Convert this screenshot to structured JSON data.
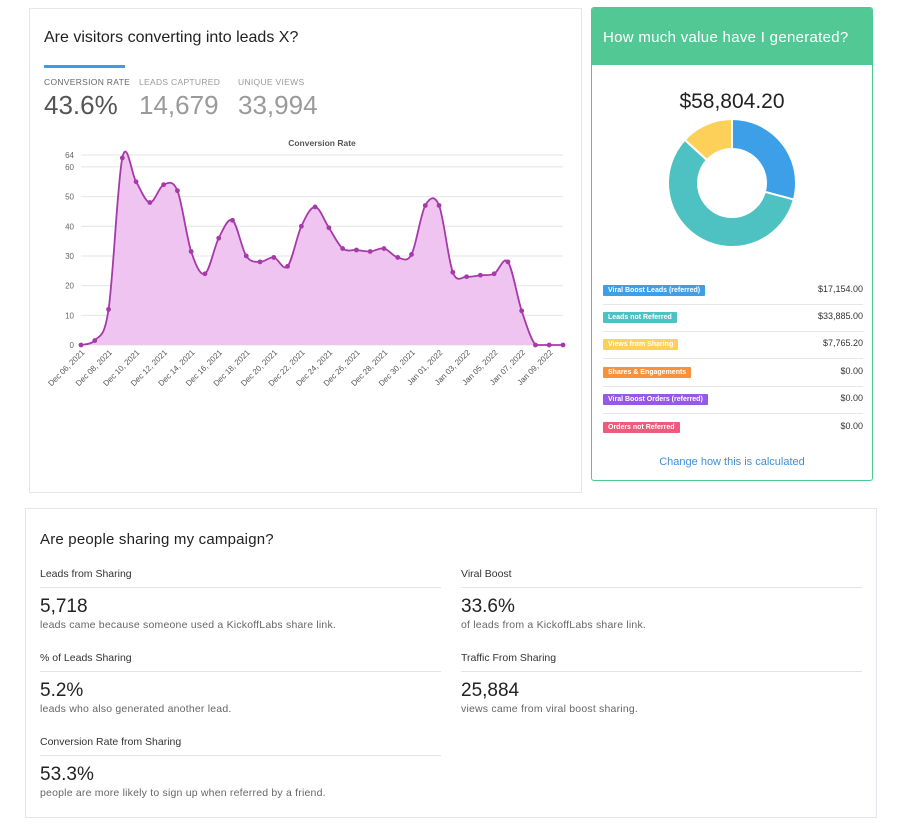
{
  "conversion": {
    "title": "Are visitors converting into leads X?",
    "stats": [
      {
        "label": "CONVERSION RATE",
        "value": "43.6%"
      },
      {
        "label": "LEADS CAPTURED",
        "value": "14,679"
      },
      {
        "label": "UNIQUE VIEWS",
        "value": "33,994"
      }
    ]
  },
  "chart_data": {
    "type": "area",
    "title": "Conversion Rate",
    "y_ticks": [
      0,
      10,
      20,
      30,
      40,
      50,
      60,
      64
    ],
    "ylim": [
      0,
      64
    ],
    "grid": true,
    "line_color": "#a63aa8",
    "fill_color": "#f0c4f0",
    "x_labels": [
      "Dec 06, 2021",
      "Dec 08, 2021",
      "Dec 10, 2021",
      "Dec 12, 2021",
      "Dec 14, 2021",
      "Dec 16, 2021",
      "Dec 18, 2021",
      "Dec 20, 2021",
      "Dec 22, 2021",
      "Dec 24, 2021",
      "Dec 26, 2021",
      "Dec 28, 2021",
      "Dec 30, 2021",
      "Jan 01, 2022",
      "Jan 03, 2022",
      "Jan 05, 2022",
      "Jan 07, 2022",
      "Jan 09, 2022"
    ],
    "values": [
      0,
      1.5,
      12,
      63,
      55,
      48,
      54,
      52,
      31.5,
      24,
      36,
      42,
      30,
      28,
      29.5,
      26.5,
      40,
      46.5,
      39.5,
      32.5,
      32,
      31.5,
      32.5,
      29.5,
      30.5,
      47,
      47,
      24.5,
      23,
      23.5,
      24,
      28,
      11.5,
      0,
      0,
      0
    ]
  },
  "value": {
    "header": "How much value have I generated?",
    "total": "$58,804.20",
    "link": "Change how this is calculated",
    "items": [
      {
        "label": "Viral Boost Leads (referred)",
        "amount": "$17,154.00",
        "color": "#3d9fe8",
        "amount_value": 17154.0
      },
      {
        "label": "Leads not Referred",
        "amount": "$33,885.00",
        "color": "#4ec2c2",
        "amount_value": 33885.0
      },
      {
        "label": "Views from Sharing",
        "amount": "$7,765.20",
        "color": "#fdd05a",
        "amount_value": 7765.2
      },
      {
        "label": "Shares & Engagements",
        "amount": "$0.00",
        "color": "#f7913a",
        "amount_value": 0
      },
      {
        "label": "Viral Boost Orders (referred)",
        "amount": "$0.00",
        "color": "#9658e8",
        "amount_value": 0
      },
      {
        "label": "Orders not Referred",
        "amount": "$0.00",
        "color": "#f05a7c",
        "amount_value": 0
      }
    ]
  },
  "sharing": {
    "title": "Are people sharing my campaign?",
    "metrics": [
      {
        "label": "Leads from Sharing",
        "value": "5,718",
        "desc": "leads came because someone used a KickoffLabs share link."
      },
      {
        "label": "Viral Boost",
        "value": "33.6%",
        "desc": "of leads from a KickoffLabs share link."
      },
      {
        "label": "% of Leads Sharing",
        "value": "5.2%",
        "desc": "leads who also generated another lead."
      },
      {
        "label": "Traffic From Sharing",
        "value": "25,884",
        "desc": "views came from viral boost sharing."
      },
      {
        "label": "Conversion Rate from Sharing",
        "value": "53.3%",
        "desc": "people are more likely to sign up when referred by a friend."
      }
    ]
  }
}
